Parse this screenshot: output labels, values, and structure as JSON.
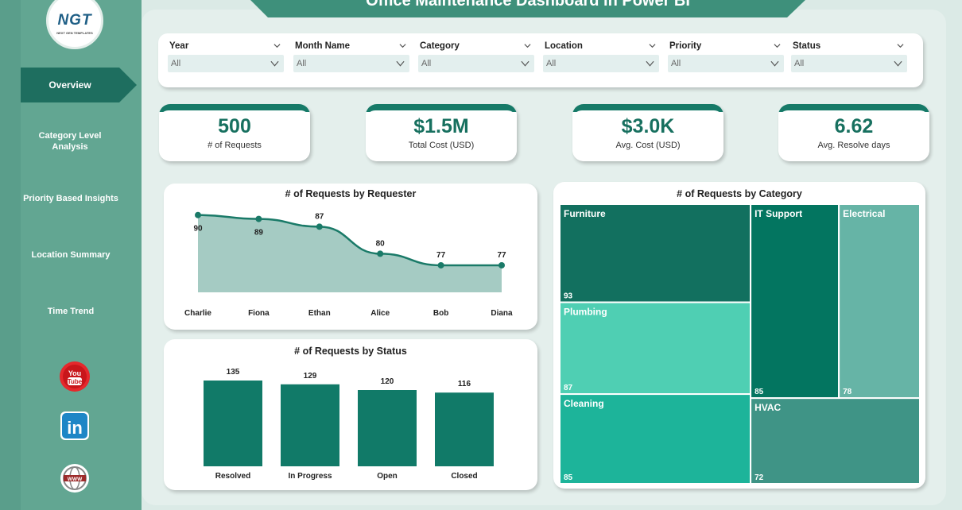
{
  "app": {
    "title": "Office Maintenance Dashboard in Power BI",
    "logo_text": "NGT",
    "logo_subtext": "NEXT GEN TEMPLATES"
  },
  "sidebar": {
    "items": [
      {
        "label": "Overview",
        "active": true
      },
      {
        "label": "Category Level Analysis",
        "active": false
      },
      {
        "label": "Priority Based Insights",
        "active": false
      },
      {
        "label": "Location Summary",
        "active": false
      },
      {
        "label": "Time Trend",
        "active": false
      }
    ],
    "social": [
      {
        "icon": "youtube-icon",
        "label": "You Tube"
      },
      {
        "icon": "linkedin-icon",
        "label": "in"
      },
      {
        "icon": "website-globe-icon",
        "label": "WWW"
      }
    ]
  },
  "filters": [
    {
      "label": "Year",
      "value": "All"
    },
    {
      "label": "Month Name",
      "value": "All"
    },
    {
      "label": "Category",
      "value": "All"
    },
    {
      "label": "Location",
      "value": "All"
    },
    {
      "label": "Priority",
      "value": "All"
    },
    {
      "label": "Status",
      "value": "All"
    }
  ],
  "kpis": [
    {
      "value": "500",
      "label": "# of Requests"
    },
    {
      "value": "$1.5M",
      "label": "Total Cost (USD)"
    },
    {
      "value": "$3.0K",
      "label": "Avg. Cost (USD)"
    },
    {
      "value": "6.62",
      "label": "Avg. Resolve days"
    }
  ],
  "colors": {
    "accent": "#167a68",
    "sidebar": "#5a9e8b",
    "bar": "#117a68",
    "line": "#1a7a68",
    "area": "#a5cbc3"
  },
  "chart_data": [
    {
      "type": "area",
      "title": "# of Requests by Requester",
      "categories": [
        "Charlie",
        "Fiona",
        "Ethan",
        "Alice",
        "Bob",
        "Diana"
      ],
      "values": [
        90,
        89,
        87,
        80,
        77,
        77
      ],
      "ylim": [
        70,
        92
      ]
    },
    {
      "type": "bar",
      "title": "# of Requests by Status",
      "categories": [
        "Resolved",
        "In Progress",
        "Open",
        "Closed"
      ],
      "values": [
        135,
        129,
        120,
        116
      ],
      "ylim": [
        0,
        140
      ]
    },
    {
      "type": "treemap",
      "title": "# of Requests by Category",
      "items": [
        {
          "label": "Furniture",
          "value": 93,
          "color": "#12705f",
          "text_color": "#ffffff"
        },
        {
          "label": "Plumbing",
          "value": 87,
          "color": "#4fcfb3",
          "text_color": "#ffffff"
        },
        {
          "label": "Cleaning",
          "value": 85,
          "color": "#1db49a",
          "text_color": "#ffffff"
        },
        {
          "label": "IT Support",
          "value": 85,
          "color": "#037560",
          "text_color": "#ffffff"
        },
        {
          "label": "Electrical",
          "value": 78,
          "color": "#66b4a6",
          "text_color": "#ffffff"
        },
        {
          "label": "HVAC",
          "value": 72,
          "color": "#3f9486",
          "text_color": "#ffffff"
        }
      ]
    }
  ]
}
